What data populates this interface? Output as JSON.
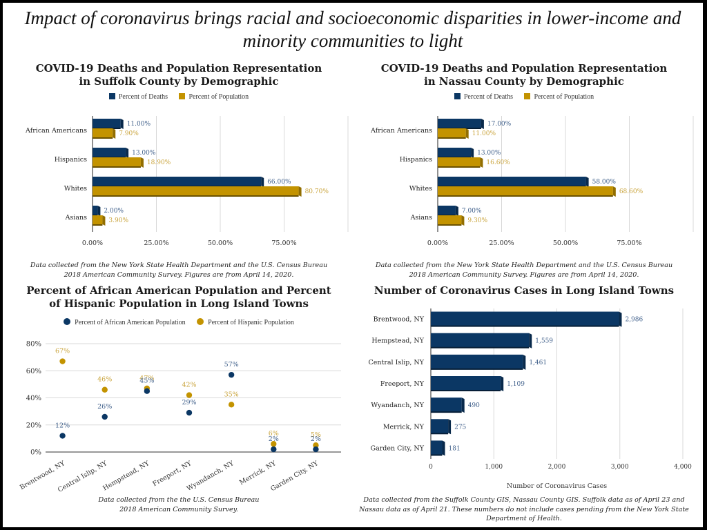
{
  "main_title": "Impact of coronavirus brings racial and socioeconomic disparities in lower-income and minority communities to light",
  "colors": {
    "navy": "#0b3764",
    "gold": "#c39300",
    "navy_label": "#3f5f8a",
    "gold_label": "#c9a33a",
    "grid": "#d8d8d8"
  },
  "chart_data": [
    {
      "id": "suffolk",
      "type": "bar",
      "orientation": "horizontal",
      "title": "COVID-19 Deaths and Population Representation in Suffolk County by Demographic",
      "categories": [
        "African Americans",
        "Hispanics",
        "Whites",
        "Asians"
      ],
      "series": [
        {
          "name": "Percent of Deaths",
          "values": [
            11.0,
            13.0,
            66.0,
            2.0
          ],
          "labels": [
            "11.00%",
            "13.00%",
            "66.00%",
            "2.00%"
          ]
        },
        {
          "name": "Percent of Population",
          "values": [
            7.9,
            18.9,
            80.7,
            3.9
          ],
          "labels": [
            "7.90%",
            "18.90%",
            "80.70%",
            "3.90%"
          ]
        }
      ],
      "xlim": [
        0,
        100
      ],
      "xticks": [
        "0.00%",
        "25.00%",
        "50.00%",
        "75.00%"
      ],
      "xlabel": "",
      "ylabel": "",
      "legend": "top-center",
      "grid": true,
      "note": "Data collected from the New York State Health Department and the U.S. Census Bureau 2018 American Community Survey. Figures are from April 14, 2020."
    },
    {
      "id": "nassau",
      "type": "bar",
      "orientation": "horizontal",
      "title": "COVID-19 Deaths and Population Representation in Nassau County by Demographic",
      "categories": [
        "African Americans",
        "Hispanics",
        "Whites",
        "Asians"
      ],
      "series": [
        {
          "name": "Percent of Deaths",
          "values": [
            17.0,
            13.0,
            58.0,
            7.0
          ],
          "labels": [
            "17.00%",
            "13.00%",
            "58.00%",
            "7.00%"
          ]
        },
        {
          "name": "Percent of Population",
          "values": [
            11.0,
            16.6,
            68.6,
            9.3
          ],
          "labels": [
            "11.00%",
            "16.60%",
            "68.60%",
            "9.30%"
          ]
        }
      ],
      "xlim": [
        0,
        100
      ],
      "xticks": [
        "0.00%",
        "25.00%",
        "50.00%",
        "75.00%"
      ],
      "xlabel": "",
      "ylabel": "",
      "legend": "top-center",
      "grid": true,
      "note": "Data collected from the New York State Health Department and the U.S. Census Bureau 2018 American Community Survey. Figures are from April 14, 2020."
    },
    {
      "id": "towns_pct",
      "type": "scatter",
      "title": "Percent of African American Population and Percent of Hispanic Population in Long Island Towns",
      "categories": [
        "Brentwood, NY",
        "Central Islip, NY",
        "Hempstead, NY",
        "Freeport, NY",
        "Wyandanch, NY",
        "Merrick, NY",
        "Garden City, NY"
      ],
      "series": [
        {
          "name": "Percent of African American Population",
          "values": [
            12,
            26,
            45,
            29,
            57,
            2,
            2
          ],
          "labels": [
            "12%",
            "26%",
            "45%",
            "29%",
            "57%",
            "2%",
            "2%"
          ]
        },
        {
          "name": "Percent of Hispanic Population",
          "values": [
            67,
            46,
            47,
            42,
            35,
            6,
            5
          ],
          "labels": [
            "67%",
            "46%",
            "47%",
            "42%",
            "35%",
            "6%",
            "5%"
          ]
        }
      ],
      "ylim": [
        0,
        80
      ],
      "yticks": [
        "0%",
        "20%",
        "40%",
        "60%",
        "80%"
      ],
      "xlabel": "",
      "ylabel": "",
      "legend": "top-center",
      "grid": true,
      "note": "Data collected from the the U.S. Census Bureau 2018 American Community Survey."
    },
    {
      "id": "towns_cases",
      "type": "bar",
      "orientation": "horizontal",
      "title": "Number of Coronavirus Cases in Long Island Towns",
      "categories": [
        "Brentwood, NY",
        "Hempstead, NY",
        "Central Islip, NY",
        "Freeport, NY",
        "Wyandanch, NY",
        "Merrick, NY",
        "Garden City, NY"
      ],
      "series": [
        {
          "name": "Number of Coronavirus Cases",
          "values": [
            2986,
            1559,
            1461,
            1109,
            490,
            275,
            181
          ],
          "labels": [
            "2,986",
            "1,559",
            "1,461",
            "1,109",
            "490",
            "275",
            "181"
          ]
        }
      ],
      "xlim": [
        0,
        4000
      ],
      "xticks": [
        "0",
        "1,000",
        "2,000",
        "3,000",
        "4,000"
      ],
      "xlabel": "Number of Coronavirus Cases",
      "ylabel": "",
      "grid": true,
      "note": "Data collected from the Suffolk County GIS, Nassau County GIS. Suffolk data as of April 23 and Nassau data as of April 21. These numbers do not include cases pending from the New York State Department of Health."
    }
  ]
}
